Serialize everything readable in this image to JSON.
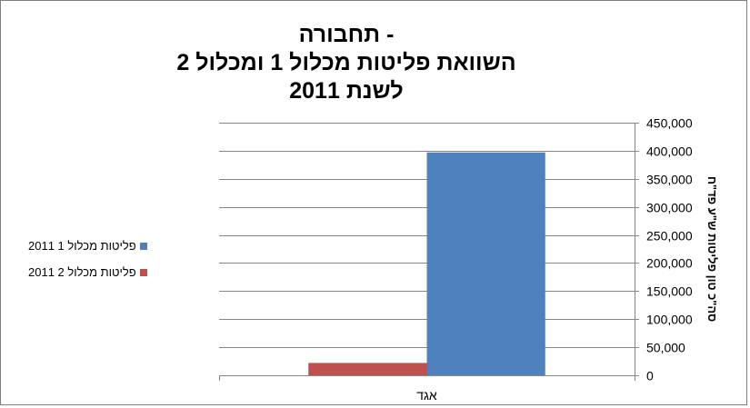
{
  "chart_data": {
    "type": "bar",
    "title_lines": [
      "- תחבורה",
      "השוואת פליטות מכלול 1 ומכלול 2",
      "לשנת 2011"
    ],
    "categories": [
      "אגד"
    ],
    "series": [
      {
        "name": "פליטות מכלול 1 2011",
        "values": [
          397000
        ],
        "color": "#4f81bd"
      },
      {
        "name": "פליטות מכלול 2 2011",
        "values": [
          22000
        ],
        "color": "#c0504d"
      }
    ],
    "ylabel": "סה\"כ טון פליטות ש\"ע פד\"ח",
    "xlabel": "",
    "ylim": [
      0,
      450000
    ],
    "yticks": [
      "0",
      "50,000",
      "100,000",
      "150,000",
      "200,000",
      "250,000",
      "300,000",
      "350,000",
      "400,000",
      "450,000"
    ],
    "ytick_values": [
      0,
      50000,
      100000,
      150000,
      200000,
      250000,
      300000,
      350000,
      400000,
      450000
    ],
    "y_axis_side": "right",
    "grid": true,
    "legend_position": "left"
  }
}
